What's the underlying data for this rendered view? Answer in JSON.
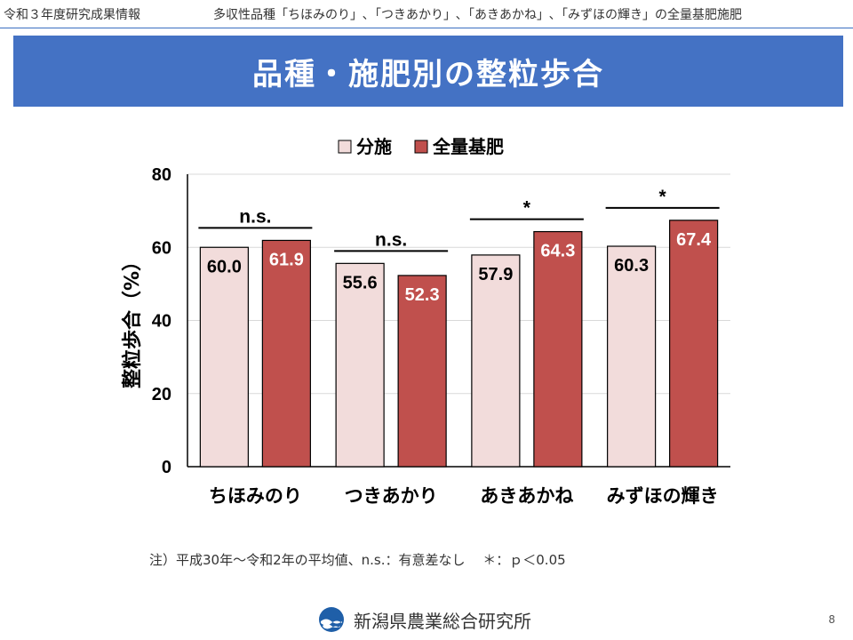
{
  "header": {
    "left": "令和３年度研究成果情報",
    "right": "多収性品種「ちほみのり」､「つきあかり」､「あきあかね」､「みずほの輝き」の全量基肥施肥"
  },
  "title": "品種・施肥別の整粒歩合",
  "chart_data": {
    "type": "bar",
    "categories": [
      "ちほみのり",
      "つきあかり",
      "あきあかね",
      "みずほの輝き"
    ],
    "series": [
      {
        "name": "分施",
        "values": [
          60.0,
          55.6,
          57.9,
          60.3
        ],
        "labels": [
          "60.0",
          "55.6",
          "57.9",
          "60.3"
        ],
        "color": "#f2dcdb",
        "label_color": "#000000"
      },
      {
        "name": "全量基肥",
        "values": [
          61.9,
          52.3,
          64.3,
          67.4
        ],
        "labels": [
          "61.9",
          "52.3",
          "64.3",
          "67.4"
        ],
        "color": "#c0504d",
        "label_color": "#ffffff"
      }
    ],
    "significance": [
      "n.s.",
      "n.s.",
      "*",
      "*"
    ],
    "ylabel": "整粒歩合（%）",
    "xlabel": "",
    "ylim": [
      0,
      80
    ],
    "yticks": [
      "0",
      "20",
      "40",
      "60",
      "80"
    ],
    "grid": true,
    "legend_position": "top"
  },
  "note": "注）平成30年〜令和2年の平均値、n.s.：有意差なし　 ＊：ｐ＜0.05",
  "footer": {
    "org": "新潟県農業総合研究所",
    "page": "8"
  },
  "colors": {
    "accent": "#4472c4"
  }
}
